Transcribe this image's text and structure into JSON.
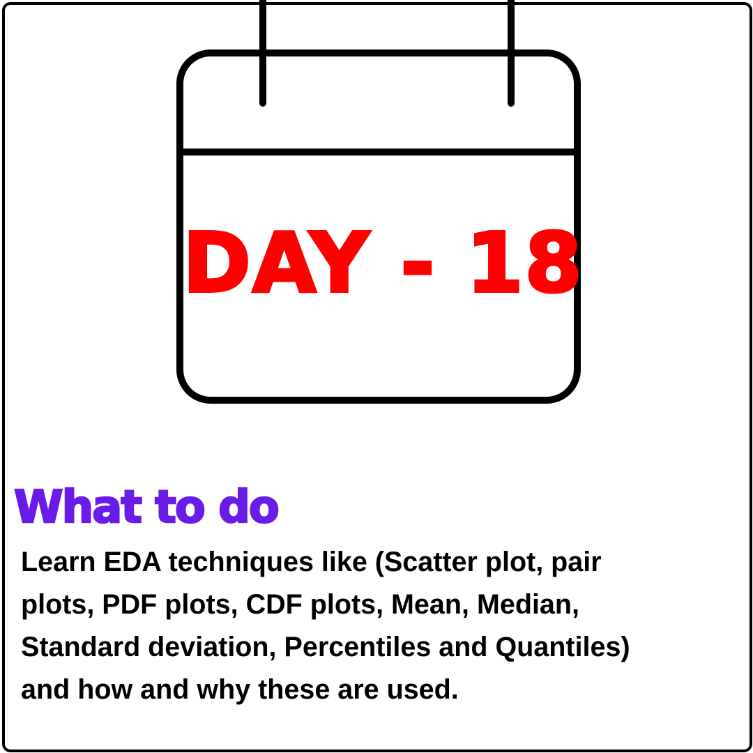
{
  "calendar": {
    "day_label": "DAY - 18",
    "day_color": "#ff0000",
    "icon": "calendar-icon"
  },
  "section": {
    "heading": "What to do",
    "heading_color": "#6a1be8",
    "lines": [
      "Learn EDA techniques like (Scatter plot, pair",
      "plots, PDF plots, CDF plots, Mean, Median,",
      "Standard deviation, Percentiles and Quantiles)",
      "and how and why these are used."
    ]
  }
}
